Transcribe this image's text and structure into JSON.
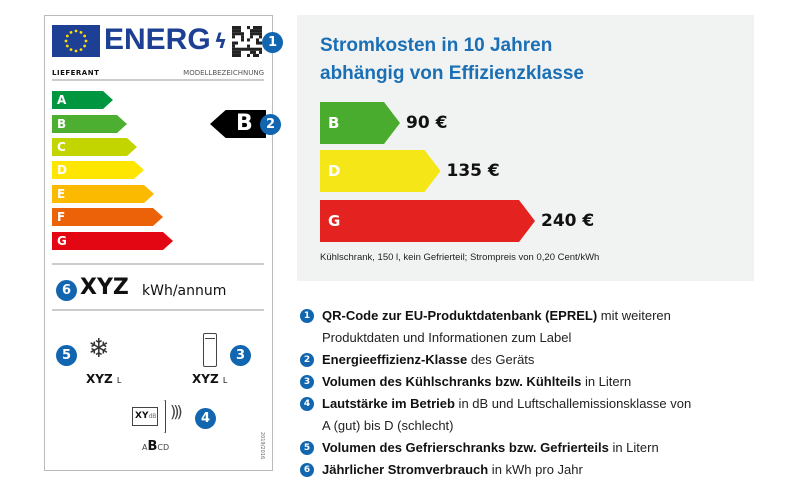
{
  "label": {
    "brand": "ENERG",
    "supplier": "LIEFERANT",
    "model": "MODELLBEZEICHNUNG",
    "classes": [
      {
        "letter": "A",
        "color": "#00963f"
      },
      {
        "letter": "B",
        "color": "#4caf32"
      },
      {
        "letter": "C",
        "color": "#c3d500"
      },
      {
        "letter": "D",
        "color": "#ffe600"
      },
      {
        "letter": "E",
        "color": "#fbb900"
      },
      {
        "letter": "F",
        "color": "#eb6209"
      },
      {
        "letter": "G",
        "color": "#e30613"
      }
    ],
    "current_class": "B",
    "consumption_value": "XYZ",
    "consumption_unit": "kWh/annum",
    "freezer_value": "XYZ",
    "freezer_unit": "L",
    "fridge_value": "XYZ",
    "fridge_unit": "L",
    "noise_value": "XY",
    "noise_unit": "dB",
    "noise_classes": {
      "a": "A",
      "b": "B",
      "cd": "CD"
    },
    "regulation": "2019/2016",
    "badges": [
      "1",
      "2",
      "3",
      "4",
      "5",
      "6"
    ]
  },
  "costs": {
    "title_line1": "Stromkosten in 10 Jahren",
    "title_line2": "abhängig von Effizienzklasse",
    "bars": [
      {
        "class": "B",
        "value": 90,
        "label": "90 €",
        "color": "#4aac2e"
      },
      {
        "class": "D",
        "value": 135,
        "label": "135 €",
        "color": "#f5e617"
      },
      {
        "class": "G",
        "value": 240,
        "label": "240 €",
        "color": "#e42320"
      }
    ],
    "footnote": "Kühlschrank, 150 l, kein Gefrierteil; Strompreis von 0,20 Cent/kWh"
  },
  "legend": [
    {
      "num": "1",
      "bold": "QR-Code zur EU-Produktdatenbank (EPREL)",
      "rest": " mit weiteren",
      "cont": "Produktdaten und Informationen zum Label"
    },
    {
      "num": "2",
      "bold": "Energieeffizienz-Klasse",
      "rest": " des Geräts"
    },
    {
      "num": "3",
      "bold": "Volumen des Kühlschranks bzw. Kühlteils",
      "rest": " in Litern"
    },
    {
      "num": "4",
      "bold": "Lautstärke im Betrieb",
      "rest": " in dB und Luftschallemissionsklasse von",
      "cont": "A (gut) bis D (schlecht)"
    },
    {
      "num": "5",
      "bold": "Volumen des Gefrierschranks bzw. Gefrierteils",
      "rest": " in Litern"
    },
    {
      "num": "6",
      "bold": "Jährlicher Stromverbrauch",
      "rest": " in kWh pro Jahr"
    }
  ]
}
